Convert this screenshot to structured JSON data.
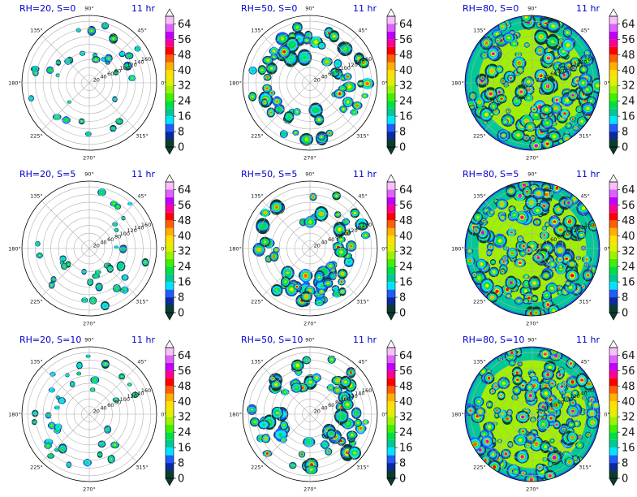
{
  "chart_data": {
    "type": "heatmap",
    "layout": "3x3 grid of polar filled-contour plots, each with its own vertical colorbar",
    "time_label": "11 hr",
    "angular_ticks": [
      "0°",
      "45°",
      "90°",
      "135°",
      "180°",
      "225°",
      "270°",
      "315°"
    ],
    "radial_ticks": [
      "20",
      "40",
      "60",
      "80",
      "100",
      "120",
      "140",
      "160"
    ],
    "rlim": [
      0,
      175
    ],
    "grid": true,
    "colorbar": {
      "ticks": [
        "0",
        "8",
        "16",
        "24",
        "32",
        "40",
        "48",
        "56",
        "64"
      ],
      "range": [
        0,
        68
      ],
      "extend": "both",
      "levels": [
        {
          "from": 0,
          "color": "#0b3d2e"
        },
        {
          "from": 4,
          "color": "#0a2a9e"
        },
        {
          "from": 8,
          "color": "#1f5cff"
        },
        {
          "from": 12,
          "color": "#00e5ff"
        },
        {
          "from": 16,
          "color": "#00c896"
        },
        {
          "from": 20,
          "color": "#00e040"
        },
        {
          "from": 24,
          "color": "#40f000"
        },
        {
          "from": 28,
          "color": "#a0f000"
        },
        {
          "from": 32,
          "color": "#e0f000"
        },
        {
          "from": 36,
          "color": "#ffe000"
        },
        {
          "from": 40,
          "color": "#ffb000"
        },
        {
          "from": 44,
          "color": "#ff6000"
        },
        {
          "from": 48,
          "color": "#ff0000"
        },
        {
          "from": 52,
          "color": "#ff0090"
        },
        {
          "from": 56,
          "color": "#c000ff"
        },
        {
          "from": 60,
          "color": "#e060ff"
        },
        {
          "from": 64,
          "color": "#f8c0f8"
        }
      ]
    },
    "panels": [
      {
        "title": "RH=20, S=0",
        "rh": 20,
        "s": 0,
        "coverage": "sparse"
      },
      {
        "title": "RH=50, S=0",
        "rh": 50,
        "s": 0,
        "coverage": "ring"
      },
      {
        "title": "RH=80, S=0",
        "rh": 80,
        "s": 0,
        "coverage": "full"
      },
      {
        "title": "RH=20, S=5",
        "rh": 20,
        "s": 5,
        "coverage": "sparse"
      },
      {
        "title": "RH=50, S=5",
        "rh": 50,
        "s": 5,
        "coverage": "ring"
      },
      {
        "title": "RH=80, S=5",
        "rh": 80,
        "s": 5,
        "coverage": "full"
      },
      {
        "title": "RH=20, S=10",
        "rh": 20,
        "s": 10,
        "coverage": "sparse"
      },
      {
        "title": "RH=50, S=10",
        "rh": 50,
        "s": 10,
        "coverage": "ring"
      },
      {
        "title": "RH=80, S=10",
        "rh": 80,
        "s": 10,
        "coverage": "full"
      }
    ]
  }
}
